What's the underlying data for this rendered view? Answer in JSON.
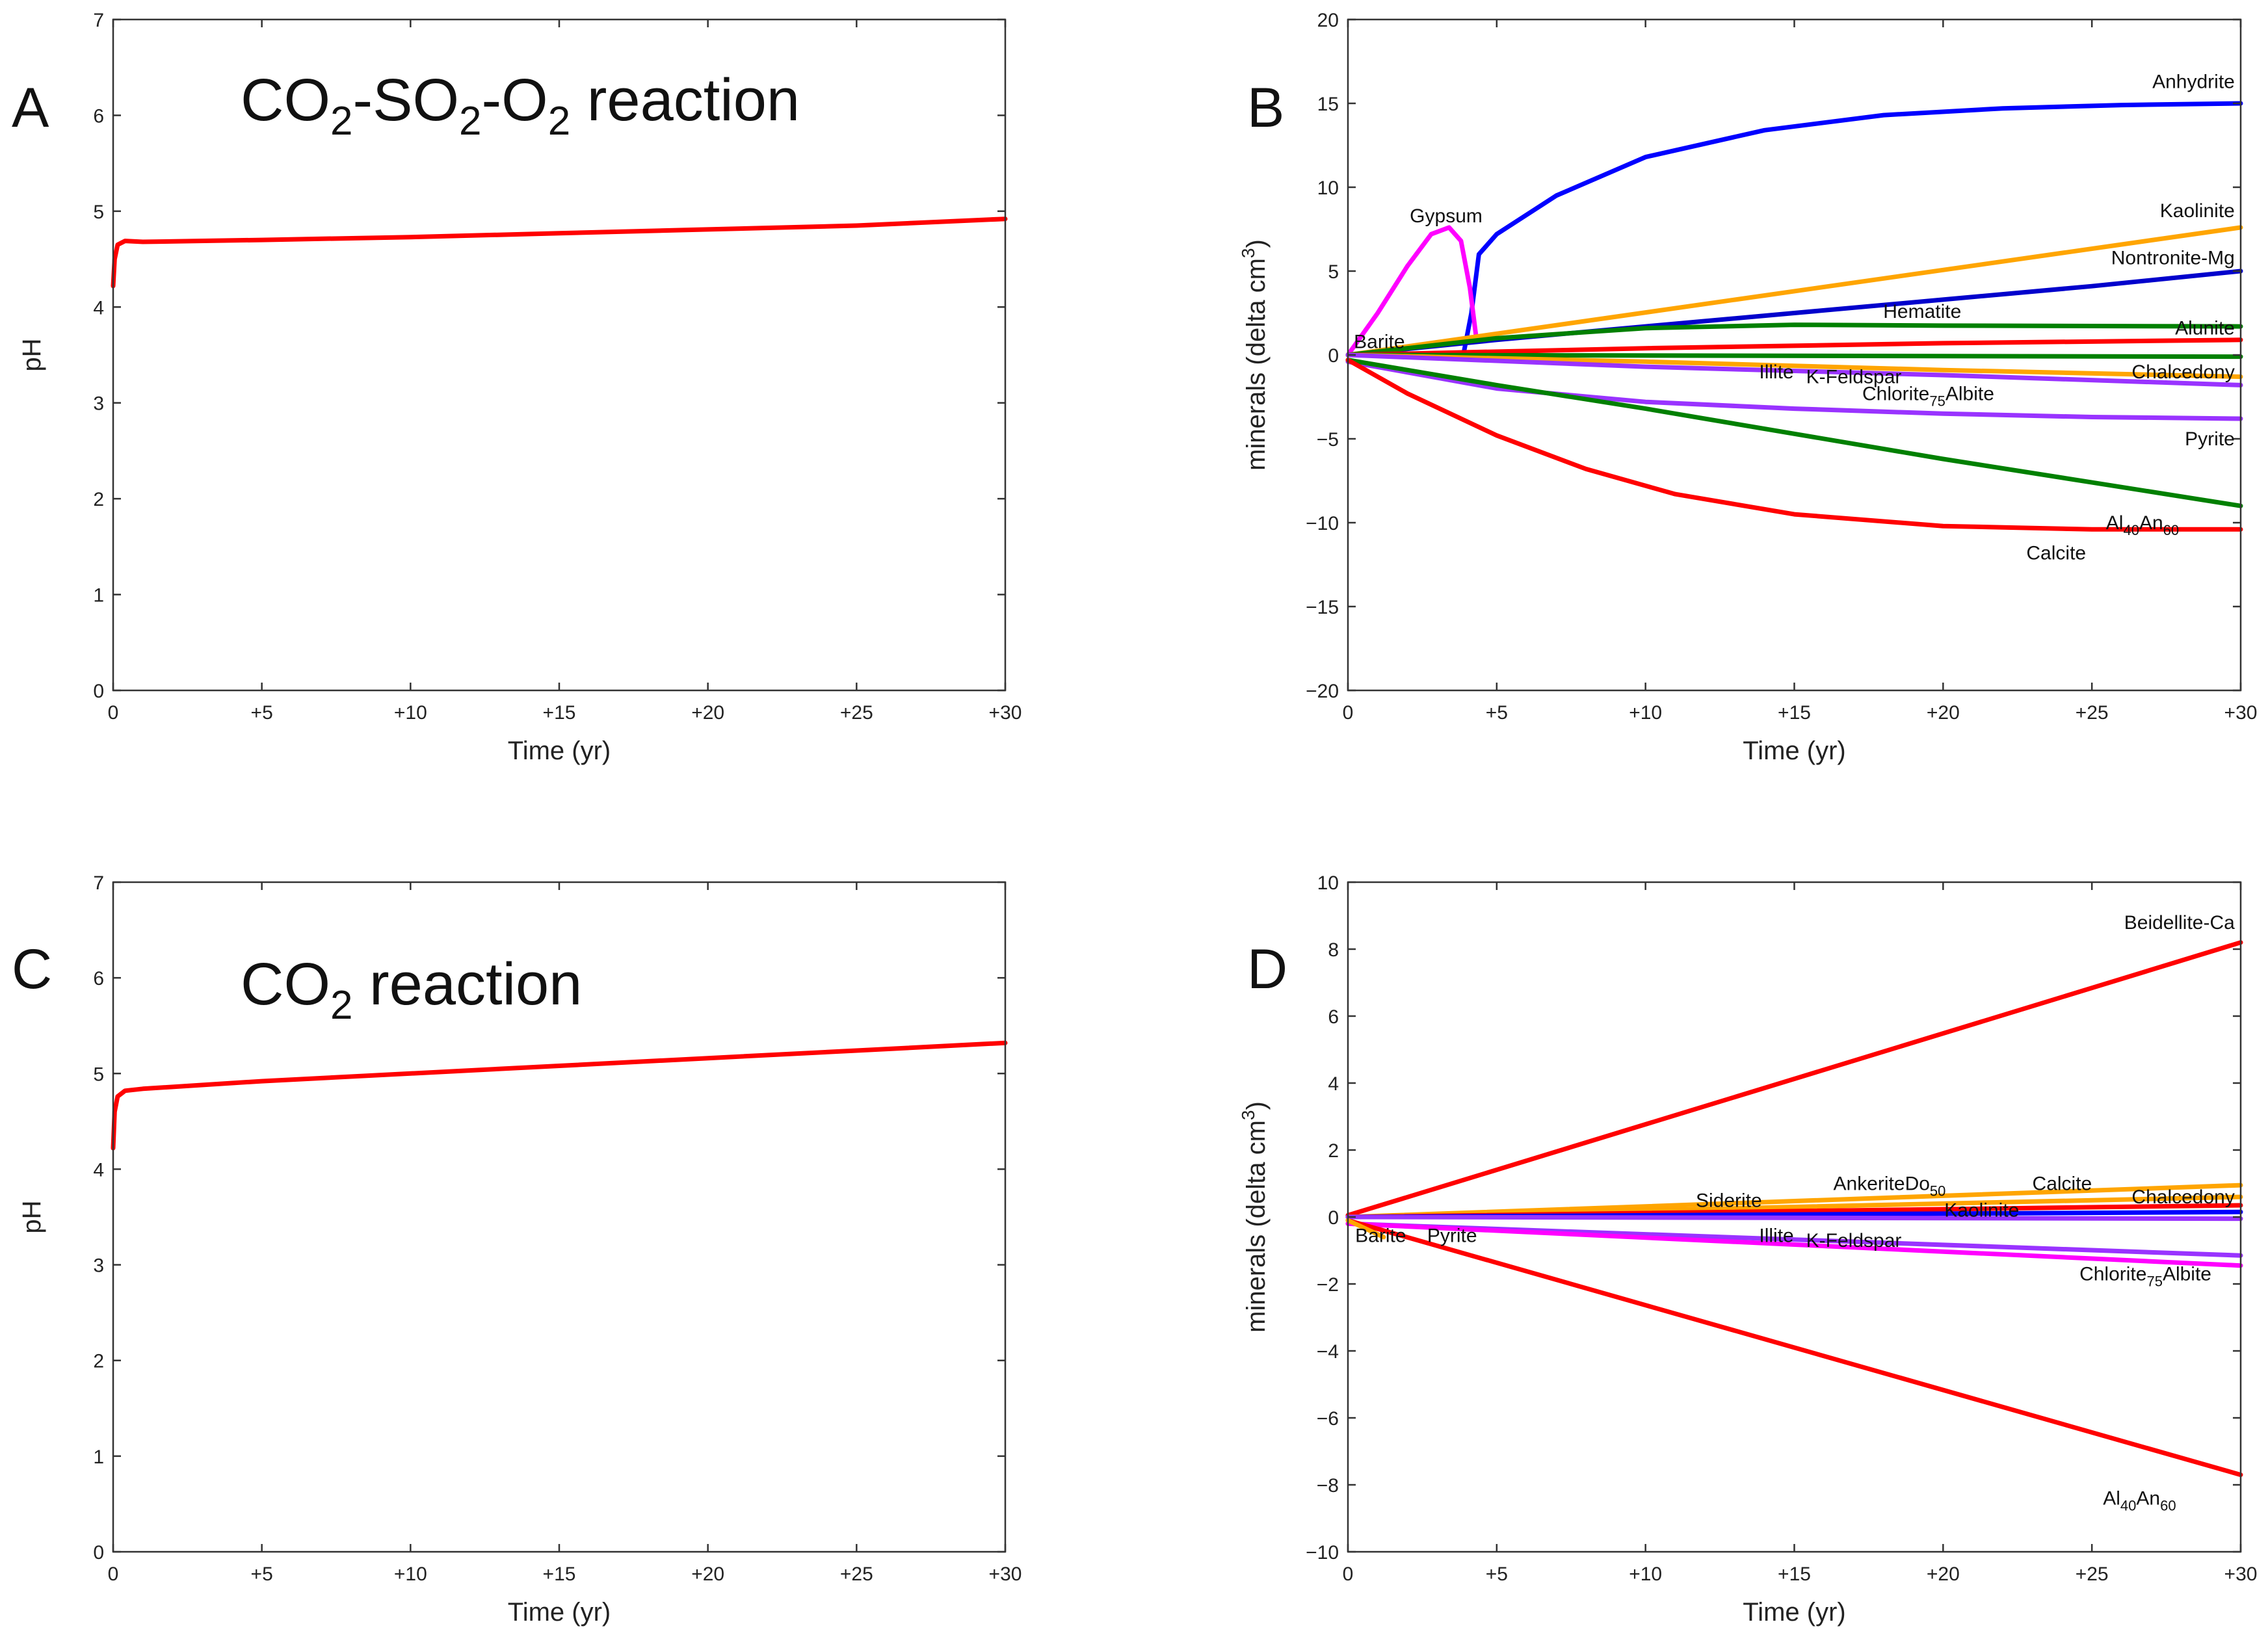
{
  "figure": {
    "background": "#ffffff"
  },
  "chart_data": [
    {
      "id": "A",
      "panel_letter": "A",
      "type": "line",
      "annotation": {
        "parts": [
          "CO",
          "2",
          "-SO",
          "2",
          "-O",
          "2",
          " reaction"
        ]
      },
      "xlabel": "Time (yr)",
      "ylabel": "pH",
      "xlim": [
        0,
        30
      ],
      "ylim": [
        0,
        7
      ],
      "xticks": [
        0,
        5,
        10,
        15,
        20,
        25,
        30
      ],
      "xtick_labels": [
        "0",
        "+5",
        "+10",
        "+15",
        "+20",
        "+25",
        "+30"
      ],
      "yticks": [
        0,
        1,
        2,
        3,
        4,
        5,
        6,
        7
      ],
      "ytick_labels": [
        "0",
        "1",
        "2",
        "3",
        "4",
        "5",
        "6",
        "7"
      ],
      "series": [
        {
          "name": "pH",
          "color": "#ff0000",
          "x": [
            0,
            0.05,
            0.15,
            0.4,
            1,
            5,
            10,
            15,
            20,
            25,
            30
          ],
          "y": [
            4.22,
            4.5,
            4.65,
            4.69,
            4.68,
            4.7,
            4.73,
            4.77,
            4.81,
            4.85,
            4.92
          ]
        }
      ],
      "labels": []
    },
    {
      "id": "B",
      "panel_letter": "B",
      "type": "line",
      "xlabel": "Time (yr)",
      "ylabel_parts": [
        "minerals (delta cm",
        "3",
        ")"
      ],
      "xlim": [
        0,
        30
      ],
      "ylim": [
        -20,
        20
      ],
      "xticks": [
        0,
        5,
        10,
        15,
        20,
        25,
        30
      ],
      "xtick_labels": [
        "0",
        "+5",
        "+10",
        "+15",
        "+20",
        "+25",
        "+30"
      ],
      "yticks": [
        -20,
        -15,
        -10,
        -5,
        0,
        5,
        10,
        15,
        20
      ],
      "ytick_labels": [
        "−20",
        "−15",
        "−10",
        "−5",
        "0",
        "5",
        "10",
        "15",
        "20"
      ],
      "series": [
        {
          "name": "Anhydrite",
          "color": "#0000ff",
          "x": [
            3.9,
            4.15,
            4.4,
            5,
            7,
            10,
            14,
            18,
            22,
            26,
            30
          ],
          "y": [
            0.2,
            2.5,
            6.0,
            7.2,
            9.5,
            11.8,
            13.4,
            14.3,
            14.7,
            14.9,
            15.0
          ]
        },
        {
          "name": "Gypsum",
          "color": "#ff00ff",
          "x": [
            0,
            1,
            2,
            2.8,
            3.4,
            3.8,
            4.1,
            4.3
          ],
          "y": [
            0,
            2.5,
            5.3,
            7.2,
            7.6,
            6.8,
            4.0,
            1.2
          ]
        },
        {
          "name": "Kaolinite",
          "color": "#ffa500",
          "x": [
            0,
            30
          ],
          "y": [
            0,
            7.6
          ]
        },
        {
          "name": "Nontronite-Mg",
          "color": "#0000cc",
          "x": [
            0,
            5,
            10,
            15,
            20,
            25,
            30
          ],
          "y": [
            0,
            0.9,
            1.7,
            2.5,
            3.3,
            4.1,
            5.0
          ]
        },
        {
          "name": "Hematite",
          "color": "#008000",
          "x": [
            0,
            5,
            10,
            15,
            20,
            30
          ],
          "y": [
            0,
            1.0,
            1.6,
            1.8,
            1.75,
            1.7
          ]
        },
        {
          "name": "Alunite",
          "color": "#ff0000",
          "x": [
            0,
            10,
            20,
            30
          ],
          "y": [
            0,
            0.4,
            0.7,
            0.9
          ]
        },
        {
          "name": "Chalcedony",
          "color": "#008000",
          "x": [
            0,
            30
          ],
          "y": [
            0,
            -0.1
          ]
        },
        {
          "name": "Illite",
          "color": "#ffa500",
          "x": [
            0,
            10,
            20,
            30
          ],
          "y": [
            0,
            -0.4,
            -0.9,
            -1.3
          ]
        },
        {
          "name": "Albite",
          "color": "#9933ff",
          "x": [
            0,
            10,
            20,
            30
          ],
          "y": [
            0,
            -0.7,
            -1.2,
            -1.8
          ]
        },
        {
          "name": "Pyrite",
          "color": "#9933ff",
          "x": [
            0,
            5,
            10,
            15,
            20,
            25,
            30
          ],
          "y": [
            -0.4,
            -2.0,
            -2.8,
            -3.2,
            -3.5,
            -3.7,
            -3.8
          ]
        },
        {
          "name": "Al40An60",
          "color": "#008000",
          "x": [
            0,
            5,
            10,
            15,
            20,
            25,
            30
          ],
          "y": [
            -0.3,
            -1.8,
            -3.2,
            -4.7,
            -6.2,
            -7.6,
            -9.0
          ]
        },
        {
          "name": "Calcite",
          "color": "#ff0000",
          "x": [
            0,
            2,
            5,
            8,
            11,
            15,
            20,
            25,
            30
          ],
          "y": [
            -0.3,
            -2.3,
            -4.8,
            -6.8,
            -8.3,
            -9.5,
            -10.2,
            -10.4,
            -10.4
          ]
        }
      ],
      "labels": [
        {
          "text": "Anhydrite",
          "x": 29.8,
          "y": 16.3,
          "anchor": "end"
        },
        {
          "text": "Kaolinite",
          "x": 29.8,
          "y": 8.6,
          "anchor": "end"
        },
        {
          "text": "Nontronite-Mg",
          "x": 29.8,
          "y": 5.8,
          "anchor": "end"
        },
        {
          "text": "Hematite",
          "x": 19.3,
          "y": 2.6,
          "anchor": "middle"
        },
        {
          "text": "Alunite",
          "x": 29.8,
          "y": 1.6,
          "anchor": "end"
        },
        {
          "text": "Chalcedony",
          "x": 29.8,
          "y": -1.0,
          "anchor": "end"
        },
        {
          "text": "Gypsum",
          "x": 3.3,
          "y": 8.3,
          "anchor": "middle"
        },
        {
          "text": "Barite",
          "x": 0.2,
          "y": 0.8,
          "anchor": "start"
        },
        {
          "text": "Illite",
          "x": 14.4,
          "y": -1.0,
          "anchor": "middle"
        },
        {
          "text": "K-Feldspar",
          "x": 17.0,
          "y": -1.3,
          "anchor": "middle"
        },
        {
          "text": "Pyrite",
          "x": 29.8,
          "y": -5.0,
          "anchor": "end"
        },
        {
          "text": "Calcite",
          "x": 23.8,
          "y": -11.8,
          "anchor": "middle"
        }
      ],
      "sub_labels": [
        {
          "base": "Chlorite",
          "sub": "75",
          "tail": "Albite",
          "x": 19.5,
          "y": -2.3
        },
        {
          "base": "Al",
          "sub": "40",
          "tail": "An",
          "sub2": "60",
          "x": 26.7,
          "y": -10.0
        }
      ]
    },
    {
      "id": "C",
      "panel_letter": "C",
      "type": "line",
      "annotation": {
        "parts": [
          "CO",
          "2",
          " reaction"
        ]
      },
      "xlabel": "Time (yr)",
      "ylabel": "pH",
      "xlim": [
        0,
        30
      ],
      "ylim": [
        0,
        7
      ],
      "xticks": [
        0,
        5,
        10,
        15,
        20,
        25,
        30
      ],
      "xtick_labels": [
        "0",
        "+5",
        "+10",
        "+15",
        "+20",
        "+25",
        "+30"
      ],
      "yticks": [
        0,
        1,
        2,
        3,
        4,
        5,
        6,
        7
      ],
      "ytick_labels": [
        "0",
        "1",
        "2",
        "3",
        "4",
        "5",
        "6",
        "7"
      ],
      "series": [
        {
          "name": "pH",
          "color": "#ff0000",
          "x": [
            0,
            0.05,
            0.15,
            0.4,
            1,
            5,
            10,
            15,
            20,
            25,
            30
          ],
          "y": [
            4.22,
            4.6,
            4.76,
            4.82,
            4.84,
            4.92,
            5.0,
            5.08,
            5.16,
            5.24,
            5.32
          ]
        }
      ],
      "labels": []
    },
    {
      "id": "D",
      "panel_letter": "D",
      "type": "line",
      "xlabel": "Time (yr)",
      "ylabel_parts": [
        "minerals (delta cm",
        "3",
        ")"
      ],
      "xlim": [
        0,
        30
      ],
      "ylim": [
        -10,
        10
      ],
      "xticks": [
        0,
        5,
        10,
        15,
        20,
        25,
        30
      ],
      "xtick_labels": [
        "0",
        "+5",
        "+10",
        "+15",
        "+20",
        "+25",
        "+30"
      ],
      "yticks": [
        -10,
        -8,
        -6,
        -4,
        -2,
        0,
        2,
        4,
        6,
        8,
        10
      ],
      "ytick_labels": [
        "−10",
        "−8",
        "−6",
        "−4",
        "−2",
        "0",
        "2",
        "4",
        "6",
        "8",
        "10"
      ],
      "series": [
        {
          "name": "Beidellite-Ca",
          "color": "#ff0000",
          "x": [
            0,
            30
          ],
          "y": [
            0.05,
            8.2
          ]
        },
        {
          "name": "Calcite",
          "color": "#ffa500",
          "x": [
            0,
            30
          ],
          "y": [
            0,
            0.95
          ]
        },
        {
          "name": "Siderite",
          "color": "#ffa500",
          "x": [
            0,
            30
          ],
          "y": [
            0,
            0.6
          ]
        },
        {
          "name": "AnkeriteDo50",
          "color": "#ff0000",
          "x": [
            0,
            30
          ],
          "y": [
            0,
            0.35
          ]
        },
        {
          "name": "Kaolinite",
          "color": "#0000ff",
          "x": [
            0,
            30
          ],
          "y": [
            0,
            0.15
          ]
        },
        {
          "name": "Chalcedony",
          "color": "#9933ff",
          "x": [
            0,
            30
          ],
          "y": [
            0,
            -0.05
          ]
        },
        {
          "name": "Illite",
          "color": "#9933ff",
          "x": [
            0,
            30
          ],
          "y": [
            -0.2,
            -1.15
          ]
        },
        {
          "name": "K-Feldspar",
          "color": "#ff00ff",
          "x": [
            0,
            30
          ],
          "y": [
            -0.2,
            -1.45
          ]
        },
        {
          "name": "Al40An60",
          "color": "#ff0000",
          "x": [
            0,
            30
          ],
          "y": [
            -0.1,
            -7.7
          ]
        },
        {
          "name": "Pyrite",
          "color": "#ffa500",
          "x": [
            0,
            1.2
          ],
          "y": [
            -0.1,
            -0.6
          ]
        }
      ],
      "labels": [
        {
          "text": "Beidellite-Ca",
          "x": 29.8,
          "y": 8.8,
          "anchor": "end"
        },
        {
          "text": "Siderite",
          "x": 12.8,
          "y": 0.5,
          "anchor": "middle"
        },
        {
          "text": "Calcite",
          "x": 24.0,
          "y": 1.0,
          "anchor": "middle"
        },
        {
          "text": "Kaolinite",
          "x": 21.3,
          "y": 0.2,
          "anchor": "middle"
        },
        {
          "text": "Chalcedony",
          "x": 29.8,
          "y": 0.6,
          "anchor": "end"
        },
        {
          "text": "Barite",
          "x": 1.1,
          "y": -0.55,
          "anchor": "middle"
        },
        {
          "text": "Pyrite",
          "x": 3.5,
          "y": -0.55,
          "anchor": "middle"
        },
        {
          "text": "Illite",
          "x": 14.4,
          "y": -0.55,
          "anchor": "middle"
        },
        {
          "text": "K-Feldspar",
          "x": 17.0,
          "y": -0.7,
          "anchor": "middle"
        }
      ],
      "sub_labels": [
        {
          "base": "Ankerite",
          "base2": "Do",
          "sub": "50",
          "x": 18.2,
          "y": 1.0
        },
        {
          "base": "Chlorite",
          "sub": "75",
          "tail": "Albite",
          "x": 26.8,
          "y": -1.7
        },
        {
          "base": "Al",
          "sub": "40",
          "tail": "An",
          "sub2": "60",
          "x": 26.6,
          "y": -8.4
        }
      ]
    }
  ]
}
